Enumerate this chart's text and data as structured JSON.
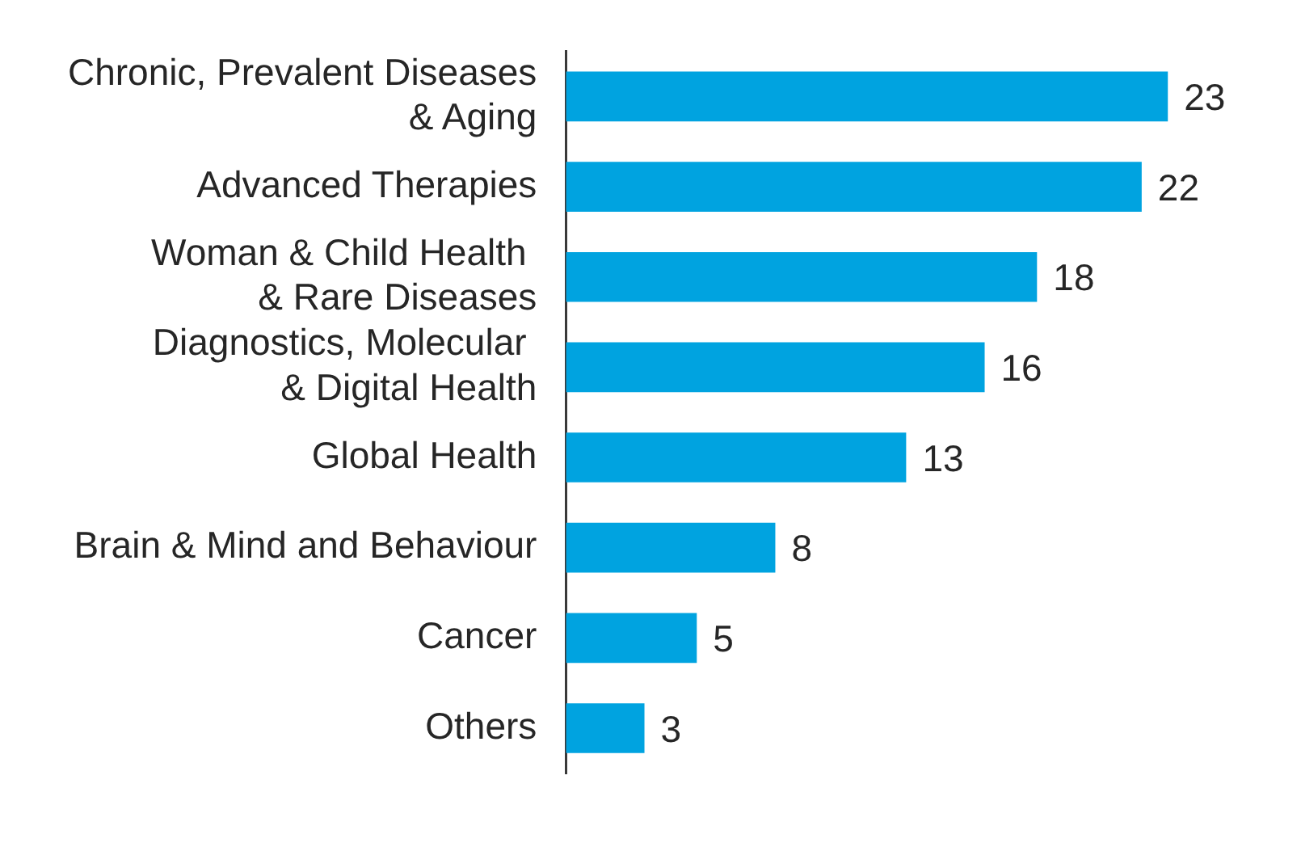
{
  "chart_data": {
    "type": "bar",
    "orientation": "horizontal",
    "categories": [
      "Chronic, Prevalent Diseases\n& Aging",
      "Advanced Therapies",
      "Woman & Child Health \n& Rare Diseases",
      "Diagnostics, Molecular \n& Digital Health",
      "Global Health",
      "Brain & Mind and Behaviour",
      "Cancer",
      "Others"
    ],
    "values": [
      23,
      22,
      18,
      16,
      13,
      8,
      5,
      3
    ],
    "color": "#00a3e0",
    "data_labels": true,
    "legend": false
  }
}
